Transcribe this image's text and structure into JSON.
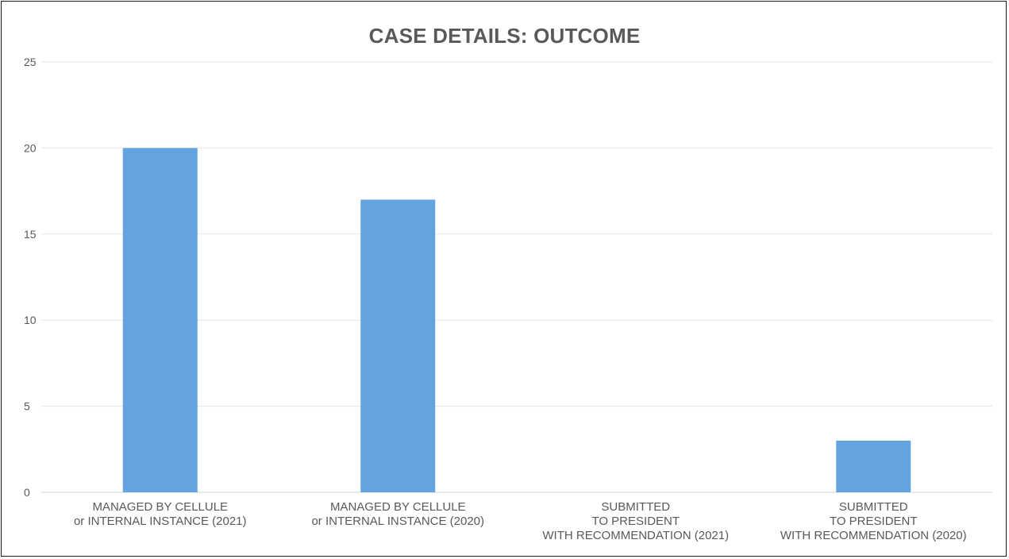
{
  "chart_data": {
    "type": "bar",
    "title": "CASE DETAILS: OUTCOME",
    "categories": [
      [
        "MANAGED BY CELLULE",
        "or INTERNAL INSTANCE (2021)"
      ],
      [
        "MANAGED BY CELLULE",
        "or INTERNAL INSTANCE (2020)"
      ],
      [
        "SUBMITTED",
        "TO PRESIDENT",
        "WITH RECOMMENDATION (2021)"
      ],
      [
        "SUBMITTED",
        "TO PRESIDENT",
        "WITH RECOMMENDATION (2020)"
      ]
    ],
    "values": [
      20,
      17,
      0,
      3
    ],
    "ylim": [
      0,
      25
    ],
    "yticks": [
      0,
      5,
      10,
      15,
      20,
      25
    ],
    "grid": true,
    "xlabel": "",
    "ylabel": "",
    "colors": {
      "bar": "#63a4e0",
      "grid": "#e6e6e6",
      "text": "#595959"
    }
  }
}
